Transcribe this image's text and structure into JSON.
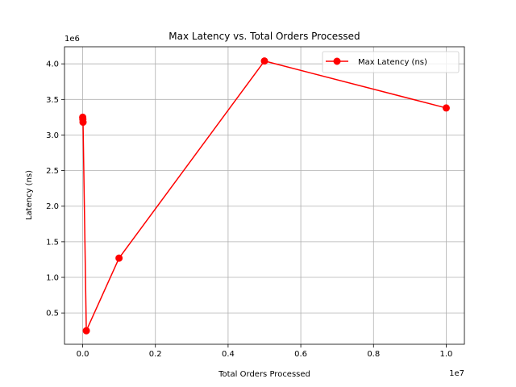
{
  "chart_data": {
    "type": "line",
    "title": "Max Latency vs. Total Orders Processed",
    "xlabel": "Total Orders Processed",
    "ylabel": "Latency (ns)",
    "x_offset_label": "1e7",
    "y_offset_label": "1e6",
    "xlim": [
      -500000,
      10500000
    ],
    "ylim": [
      60000,
      4240000
    ],
    "x_ticks": [
      0,
      2000000,
      4000000,
      6000000,
      8000000,
      10000000
    ],
    "x_tick_labels": [
      "0.0",
      "0.2",
      "0.4",
      "0.6",
      "0.8",
      "1.0"
    ],
    "y_ticks": [
      500000,
      1000000,
      1500000,
      2000000,
      2500000,
      3000000,
      3500000,
      4000000
    ],
    "y_tick_labels": [
      "0.5",
      "1.0",
      "1.5",
      "2.0",
      "2.5",
      "3.0",
      "3.5",
      "4.0"
    ],
    "grid": true,
    "legend_position": "top-right",
    "series": [
      {
        "name": "Max Latency (ns)",
        "color": "#ff0000",
        "marker": "circle",
        "x": [
          1000,
          5000,
          10000,
          100000,
          1000000,
          5000000,
          10000000
        ],
        "y": [
          3250000,
          3220000,
          3180000,
          250000,
          1270000,
          4040000,
          3380000
        ]
      }
    ]
  }
}
